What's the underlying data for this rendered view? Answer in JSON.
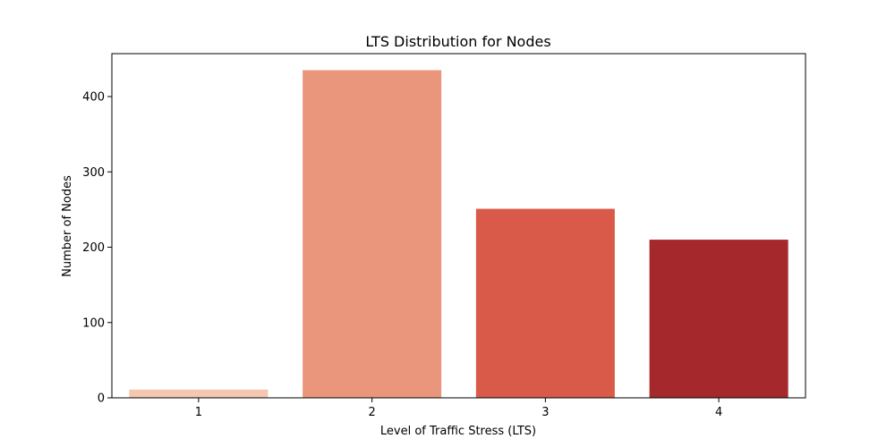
{
  "chart_data": {
    "type": "bar",
    "title": "LTS Distribution for Nodes",
    "xlabel": "Level of Traffic Stress (LTS)",
    "ylabel": "Number of Nodes",
    "categories": [
      "1",
      "2",
      "3",
      "4"
    ],
    "values": [
      11,
      435,
      251,
      210
    ],
    "colors": [
      "#f5c6b0",
      "#ea967c",
      "#da5a4a",
      "#a5282d"
    ],
    "ylim": [
      0,
      457
    ],
    "yticks": [
      0,
      100,
      200,
      300,
      400
    ],
    "grid": false,
    "legend": false
  }
}
